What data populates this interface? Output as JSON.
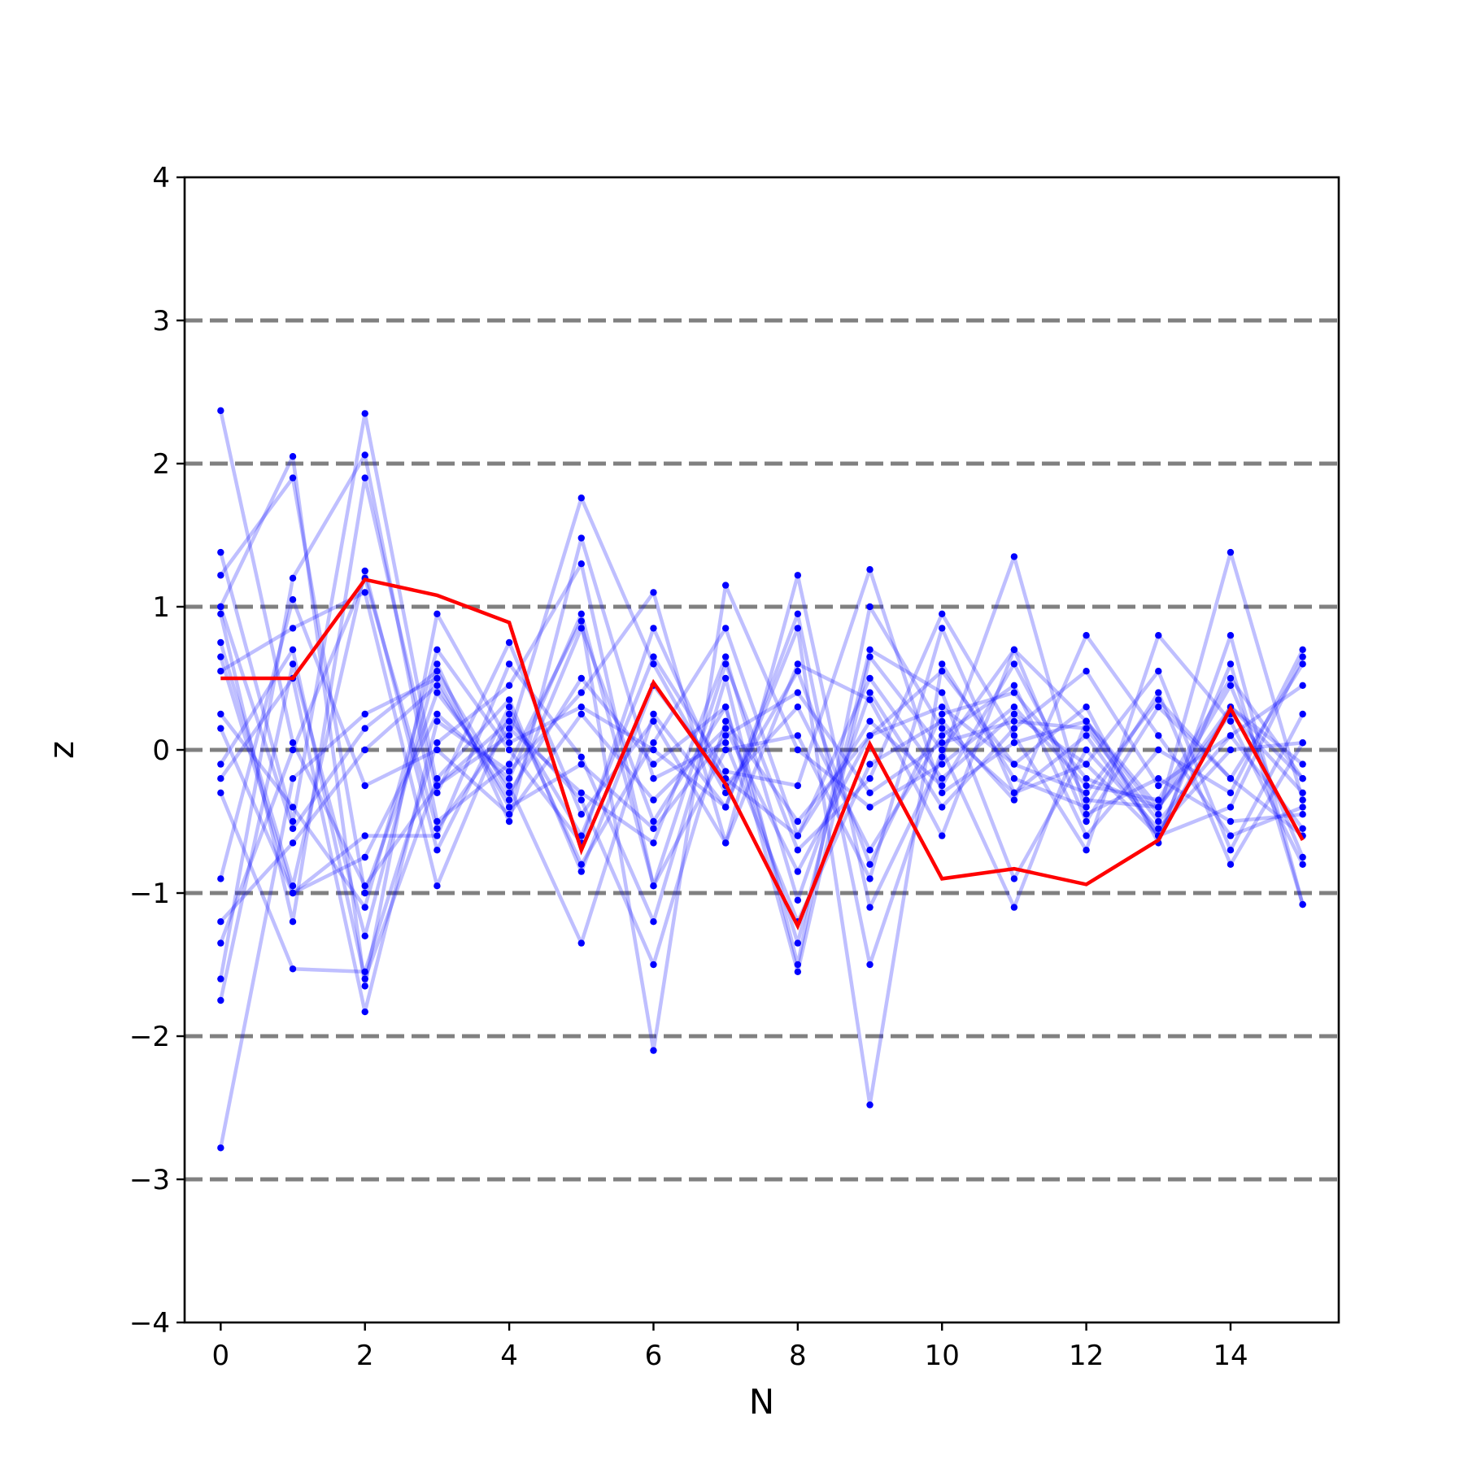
{
  "chart_data": {
    "type": "line",
    "title": "",
    "xlabel": "N",
    "ylabel": "z",
    "xlim": [
      -0.5,
      15.5
    ],
    "ylim": [
      -4,
      4
    ],
    "x": [
      0,
      1,
      2,
      3,
      4,
      5,
      6,
      7,
      8,
      9,
      10,
      11,
      12,
      13,
      14,
      15
    ],
    "xticks": [
      0,
      2,
      4,
      6,
      8,
      10,
      12,
      14
    ],
    "xtick_labels": [
      "0",
      "2",
      "4",
      "6",
      "8",
      "10",
      "12",
      "14"
    ],
    "yticks": [
      -4,
      -3,
      -2,
      -1,
      0,
      1,
      2,
      3,
      4
    ],
    "ytick_labels": [
      "−4",
      "−3",
      "−2",
      "−1",
      "0",
      "1",
      "2",
      "3",
      "4"
    ],
    "reference_lines": [
      -3,
      -2,
      -1,
      0,
      1,
      2,
      3
    ],
    "reference_line_color": "#808080",
    "sample_color": "#0000ff",
    "highlight_color": "#ff0000",
    "samples": [
      [
        2.37,
        0.05,
        -0.95,
        -0.25,
        0.1,
        1.76,
        0.6,
        -0.3,
        0.55,
        -0.8,
        0.25,
        0.4,
        -0.2,
        -0.4,
        0.3,
        -0.1
      ],
      [
        -2.78,
        -0.2,
        0.25,
        0.5,
        -0.4,
        -0.1,
        -0.55,
        0.1,
        0.4,
        -0.3,
        0.05,
        0.2,
        0.15,
        -0.5,
        0.1,
        0.45
      ],
      [
        1.38,
        -0.5,
        2.35,
        -0.25,
        0.2,
        -0.35,
        -1.5,
        0.2,
        -0.5,
        0.1,
        0.3,
        -0.1,
        -0.3,
        0.35,
        -0.2,
        0.6
      ],
      [
        1.0,
        2.05,
        -1.65,
        0.95,
        0.05,
        0.3,
        0.0,
        -0.4,
        0.95,
        -1.5,
        0.0,
        0.7,
        0.2,
        -0.4,
        0.25,
        -0.3
      ],
      [
        -1.75,
        0.6,
        -1.3,
        0.6,
        -0.5,
        1.48,
        -0.2,
        0.05,
        -1.2,
        -0.1,
        0.2,
        -0.35,
        0.8,
        0.1,
        -0.6,
        -0.4
      ],
      [
        0.75,
        -0.95,
        1.25,
        -0.7,
        0.3,
        -0.8,
        0.05,
        0.85,
        -0.6,
        0.5,
        -0.2,
        0.25,
        -0.1,
        -0.6,
        0.6,
        -1.08
      ],
      [
        1.22,
        1.9,
        -1.0,
        0.4,
        -0.25,
        -1.35,
        0.25,
        -0.4,
        0.85,
        -2.48,
        0.6,
        -0.2,
        -0.4,
        0.4,
        -0.8,
        0.05
      ],
      [
        -0.3,
        -1.53,
        -1.55,
        0.05,
        0.45,
        1.3,
        -0.95,
        0.6,
        -0.7,
        -0.2,
        0.95,
        0.1,
        -0.7,
        0.8,
        0.2,
        -0.8
      ],
      [
        -1.6,
        1.2,
        2.06,
        -0.5,
        -0.1,
        0.9,
        -2.1,
        1.15,
        0.0,
        -0.4,
        -0.1,
        0.3,
        -0.25,
        -0.35,
        0.5,
        -0.2
      ],
      [
        0.15,
        -1.0,
        -0.6,
        -0.6,
        0.6,
        -0.05,
        -1.2,
        0.5,
        -1.5,
        1.0,
        0.15,
        -0.3,
        0.1,
        -0.6,
        -0.4,
        0.65
      ],
      [
        -0.2,
        0.5,
        -1.83,
        0.2,
        -0.15,
        0.4,
        1.1,
        -0.65,
        0.6,
        0.35,
        -0.6,
        0.7,
        -0.5,
        0.3,
        -0.2,
        -0.6
      ],
      [
        0.55,
        0.85,
        1.1,
        -0.95,
        0.25,
        -0.6,
        0.65,
        -0.15,
        -0.25,
        1.26,
        -0.3,
        0.05,
        0.2,
        -0.45,
        1.38,
        -0.35
      ],
      [
        -1.2,
        -0.65,
        0.0,
        0.45,
        -0.35,
        0.85,
        -0.5,
        0.3,
        -1.35,
        0.7,
        0.4,
        -0.9,
        0.0,
        -0.55,
        0.0,
        0.05
      ],
      [
        0.95,
        -1.2,
        1.9,
        -0.3,
        0.75,
        -0.45,
        0.2,
        -0.65,
        1.22,
        -1.1,
        -0.05,
        1.35,
        -0.45,
        -0.2,
        -0.5,
        -0.45
      ],
      [
        -0.9,
        1.05,
        -0.25,
        0.0,
        -0.45,
        0.25,
        -0.35,
        0.15,
        -0.85,
        0.1,
        0.55,
        -0.1,
        0.3,
        -0.65,
        0.8,
        -1.08
      ],
      [
        0.25,
        -0.4,
        -1.1,
        0.7,
        0.0,
        -0.65,
        0.85,
        -0.25,
        0.3,
        -0.7,
        0.1,
        0.45,
        -0.6,
        0.0,
        -0.3,
        0.7
      ],
      [
        -1.35,
        0.0,
        1.2,
        -0.55,
        0.15,
        -0.3,
        -0.65,
        0.65,
        -1.05,
        0.4,
        -0.4,
        0.15,
        0.55,
        -0.25,
        0.1,
        -0.55
      ],
      [
        0.65,
        -1.0,
        -0.75,
        0.25,
        -0.2,
        0.95,
        -0.95,
        0.0,
        0.1,
        -0.9,
        0.85,
        -0.3,
        -0.1,
        0.55,
        -0.7,
        0.25
      ],
      [
        -0.1,
        0.7,
        -1.6,
        -0.2,
        0.35,
        -0.85,
        0.45,
        -0.2,
        -0.6,
        0.2,
        -0.25,
        0.6,
        -0.35,
        -0.4,
        0.45,
        -0.75
      ],
      [
        1.0,
        -0.55,
        0.15,
        0.55,
        -0.3,
        0.5,
        -0.1,
        0.3,
        -1.55,
        0.65,
        0.0,
        -1.1,
        0.2,
        -0.6,
        0.3,
        -0.2
      ]
    ],
    "highlight": {
      "values": [
        0.5,
        0.5,
        1.19,
        1.08,
        0.89,
        -0.7,
        0.47,
        -0.24,
        -1.23,
        0.04,
        -0.9,
        -0.83,
        -0.94,
        -0.63,
        0.29,
        -0.63
      ]
    }
  }
}
